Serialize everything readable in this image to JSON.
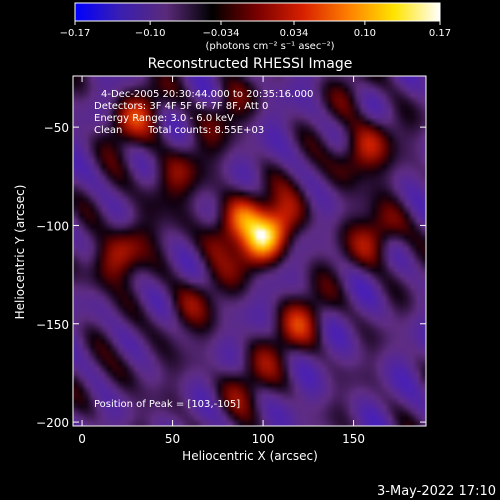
{
  "colorbar": {
    "ticks": [
      "−0.17",
      "−0.10",
      "−0.034",
      "0.034",
      "0.10",
      "0.17"
    ],
    "units": "(photons cm⁻² s⁻¹ asec⁻²)",
    "colors": [
      "#0000ff",
      "#3a1fb0",
      "#5a2a7a",
      "#000000",
      "#7a0000",
      "#d82000",
      "#ff8000",
      "#ffe400",
      "#ffffff"
    ]
  },
  "title": "Reconstructed RHESSI Image",
  "annotations": {
    "time_range": "4-Dec-2005 20:30:44.000 to 20:35:16.000",
    "detectors": "Detectors: 3F 4F 5F 6F 7F 8F, Att 0",
    "energy": "Energy Range: 3.0 - 6.0 keV",
    "method": "Clean",
    "counts": "Total counts: 8.55E+03",
    "peak": "Position of Peak = [103,-105]"
  },
  "footer_date": "3-May-2022 17:10",
  "chart_data": {
    "type": "heatmap",
    "xlabel": "Heliocentric X (arcsec)",
    "ylabel": "Heliocentric Y (arcsec)",
    "xlim": [
      -5,
      190
    ],
    "ylim": [
      -202,
      -24
    ],
    "xticks": [
      0,
      50,
      100,
      150
    ],
    "yticks": [
      -50,
      -100,
      -150,
      -200
    ],
    "colorbar_range": [
      -0.17,
      0.17
    ],
    "peak": [
      103,
      -105
    ],
    "sources": [
      {
        "x": 103,
        "y": -105,
        "value": 0.17
      },
      {
        "x": 85,
        "y": -98,
        "value": 0.12
      },
      {
        "x": 20,
        "y": -115,
        "value": 0.1
      },
      {
        "x": 50,
        "y": -75,
        "value": 0.07
      },
      {
        "x": 28,
        "y": -45,
        "value": 0.09
      },
      {
        "x": 78,
        "y": -42,
        "value": 0.05
      },
      {
        "x": 155,
        "y": -62,
        "value": 0.1
      },
      {
        "x": 163,
        "y": -105,
        "value": 0.09
      },
      {
        "x": 120,
        "y": -150,
        "value": 0.08
      },
      {
        "x": 90,
        "y": -180,
        "value": 0.06
      },
      {
        "x": 60,
        "y": -140,
        "value": 0.06
      },
      {
        "x": 150,
        "y": -30,
        "value": 0.03
      },
      {
        "x": 25,
        "y": -175,
        "value": 0.03
      }
    ]
  }
}
